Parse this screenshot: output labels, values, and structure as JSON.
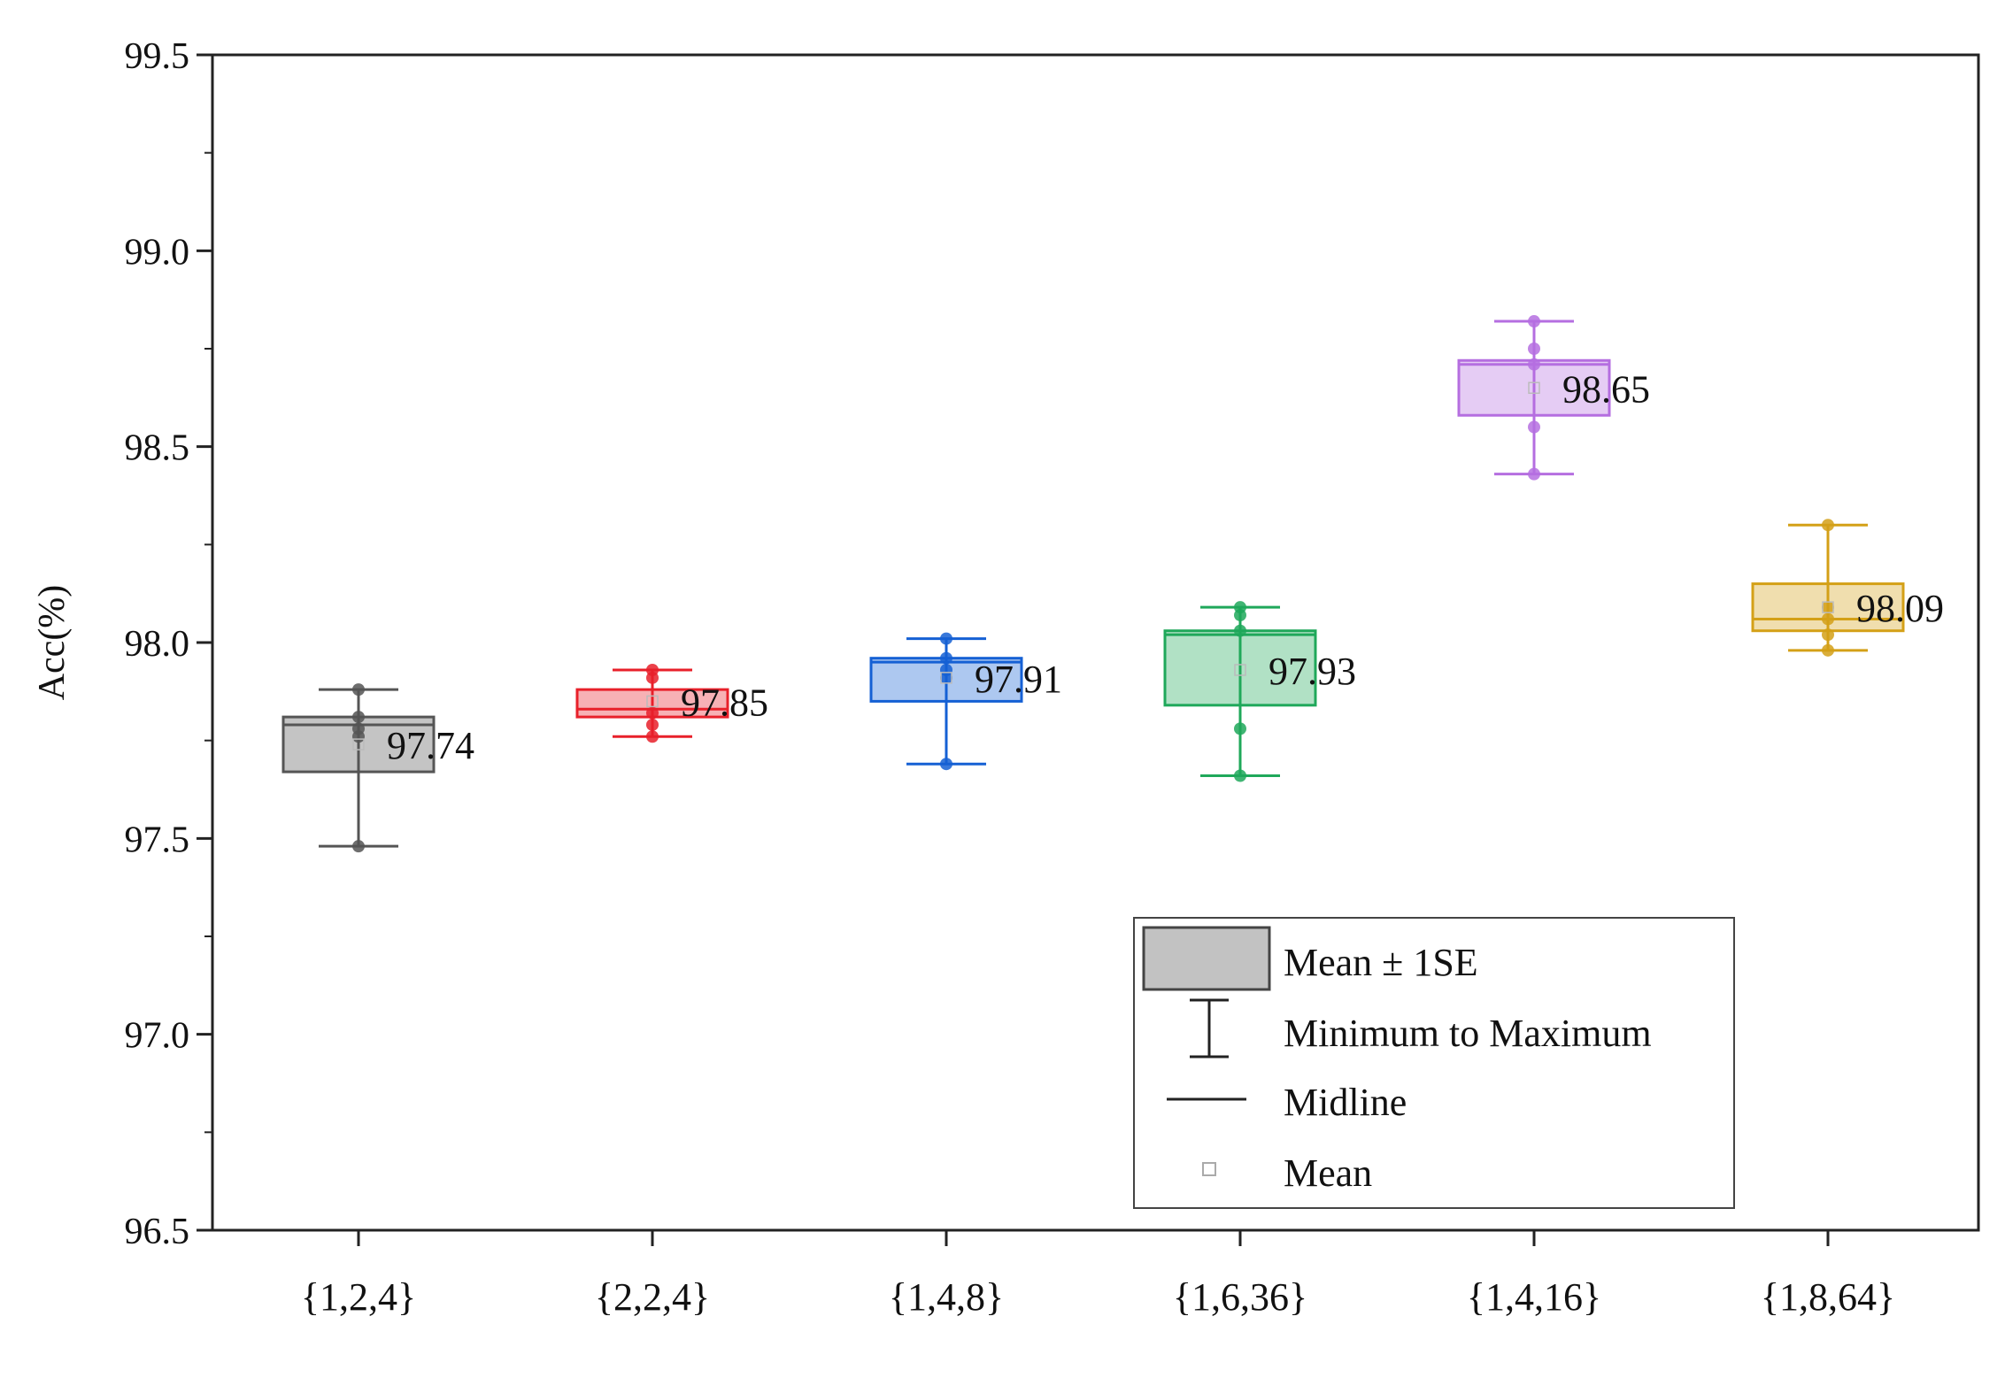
{
  "chart_data": {
    "type": "box",
    "title": "",
    "xlabel": "",
    "ylabel": "Acc(%)",
    "ylim": [
      96.5,
      99.5
    ],
    "yticks": [
      "96.5",
      "97.0",
      "97.5",
      "98.0",
      "98.5",
      "99.0",
      "99.5"
    ],
    "grid": false,
    "categories": [
      "{1,2,4}",
      "{2,2,4}",
      "{1,4,8}",
      "{1,6,36}",
      "{1,4,16}",
      "{1,8,64}"
    ],
    "series": [
      {
        "name": "{1,2,4}",
        "color": "#555555",
        "mean": 97.74,
        "mean_label": "97.74",
        "se_low": 97.67,
        "se_high": 97.81,
        "median": 97.79,
        "min": 97.48,
        "max": 97.88,
        "points": [
          97.48,
          97.76,
          97.78,
          97.81,
          97.88
        ]
      },
      {
        "name": "{2,2,4}",
        "color": "#e8202a",
        "mean": 97.85,
        "mean_label": "97.85",
        "se_low": 97.81,
        "se_high": 97.88,
        "median": 97.83,
        "min": 97.76,
        "max": 97.93,
        "points": [
          97.76,
          97.79,
          97.82,
          97.91,
          97.93
        ]
      },
      {
        "name": "{1,4,8}",
        "color": "#1560d4",
        "mean": 97.91,
        "mean_label": "97.91",
        "se_low": 97.85,
        "se_high": 97.96,
        "median": 97.95,
        "min": 97.69,
        "max": 98.01,
        "points": [
          97.69,
          97.91,
          97.93,
          97.96,
          98.01
        ]
      },
      {
        "name": "{1,6,36}",
        "color": "#1fa85a",
        "mean": 97.93,
        "mean_label": "97.93",
        "se_low": 97.84,
        "se_high": 98.03,
        "median": 98.02,
        "min": 97.66,
        "max": 98.09,
        "points": [
          97.66,
          97.78,
          98.03,
          98.07,
          98.09
        ]
      },
      {
        "name": "{1,4,16}",
        "color": "#b56ee0",
        "mean": 98.65,
        "mean_label": "98.65",
        "se_low": 98.58,
        "se_high": 98.72,
        "median": 98.71,
        "min": 98.43,
        "max": 98.82,
        "points": [
          98.43,
          98.55,
          98.71,
          98.75,
          98.82
        ]
      },
      {
        "name": "{1,8,64}",
        "color": "#d4a017",
        "mean": 98.09,
        "mean_label": "98.09",
        "se_low": 98.03,
        "se_high": 98.15,
        "median": 98.06,
        "min": 97.98,
        "max": 98.3,
        "points": [
          97.98,
          98.02,
          98.06,
          98.09,
          98.3
        ]
      }
    ],
    "legend": {
      "position": "bottom-right",
      "items": [
        "Mean ± 1SE",
        "Minimum to Maximum",
        "Midline",
        "Mean"
      ]
    }
  }
}
